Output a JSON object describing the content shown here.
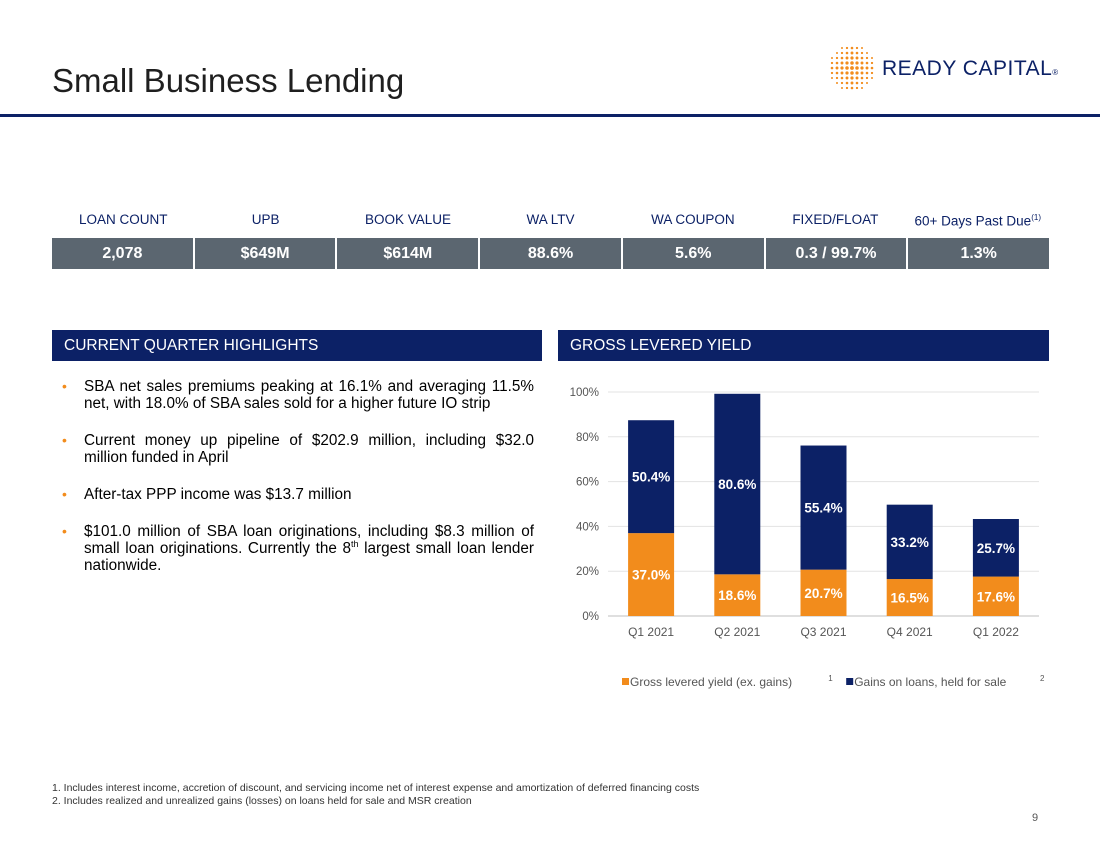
{
  "page": {
    "title": "Small Business Lending",
    "page_number": "9"
  },
  "logo": {
    "text": "READY CAPITAL",
    "reg_mark": "®",
    "accent_color": "#f28c1c",
    "brand_color": "#0c2166"
  },
  "stats": {
    "headers": [
      "LOAN COUNT",
      "UPB",
      "BOOK VALUE",
      "WA LTV",
      "WA COUPON",
      "FIXED/FLOAT"
    ],
    "last_header": "60+ Days Past Due",
    "last_header_sup": "(1)",
    "values": [
      "2,078",
      "$649M",
      "$614M",
      "88.6%",
      "5.6%",
      "0.3 / 99.7%",
      "1.3%"
    ]
  },
  "highlights": {
    "title": "CURRENT QUARTER HIGHLIGHTS",
    "bullet_symbol": "•",
    "b1": "SBA net sales premiums peaking at 16.1% and averaging 11.5% net, with 18.0% of SBA sales sold for a higher future IO strip",
    "b2": "Current money up pipeline of $202.9 million, including $32.0 million funded in April",
    "b3": "After-tax PPP income was $13.7 million",
    "b4_pre": "$101.0 million of SBA loan originations, including $8.3 million of small loan originations. Currently the 8",
    "b4_sup": "th",
    "b4_post": " largest small loan lender nationwide."
  },
  "yield_panel": {
    "title": "GROSS LEVERED YIELD"
  },
  "chart_data": {
    "type": "bar",
    "stacked": true,
    "categories": [
      "Q1 2021",
      "Q2 2021",
      "Q3 2021",
      "Q4 2021",
      "Q1 2022"
    ],
    "series": [
      {
        "name": "Gross levered yield (ex. gains)",
        "footnote": "1",
        "color": "#f28c1c",
        "values": [
          37.0,
          18.6,
          20.7,
          16.5,
          17.6
        ]
      },
      {
        "name": "Gains on loans, held for sale",
        "footnote": "2",
        "color": "#0c2166",
        "values": [
          50.4,
          80.6,
          55.4,
          33.2,
          25.7
        ]
      }
    ],
    "ylim": [
      0,
      100
    ],
    "yticks": [
      0,
      20,
      40,
      60,
      80,
      100
    ],
    "ytick_suffix": "%",
    "grid": true,
    "legend": "bottom"
  },
  "footnotes": [
    "1. Includes interest income, accretion of discount, and servicing income net of interest expense and amortization of deferred financing costs",
    "2. Includes realized and unrealized gains (losses) on loans held for sale and MSR creation"
  ]
}
